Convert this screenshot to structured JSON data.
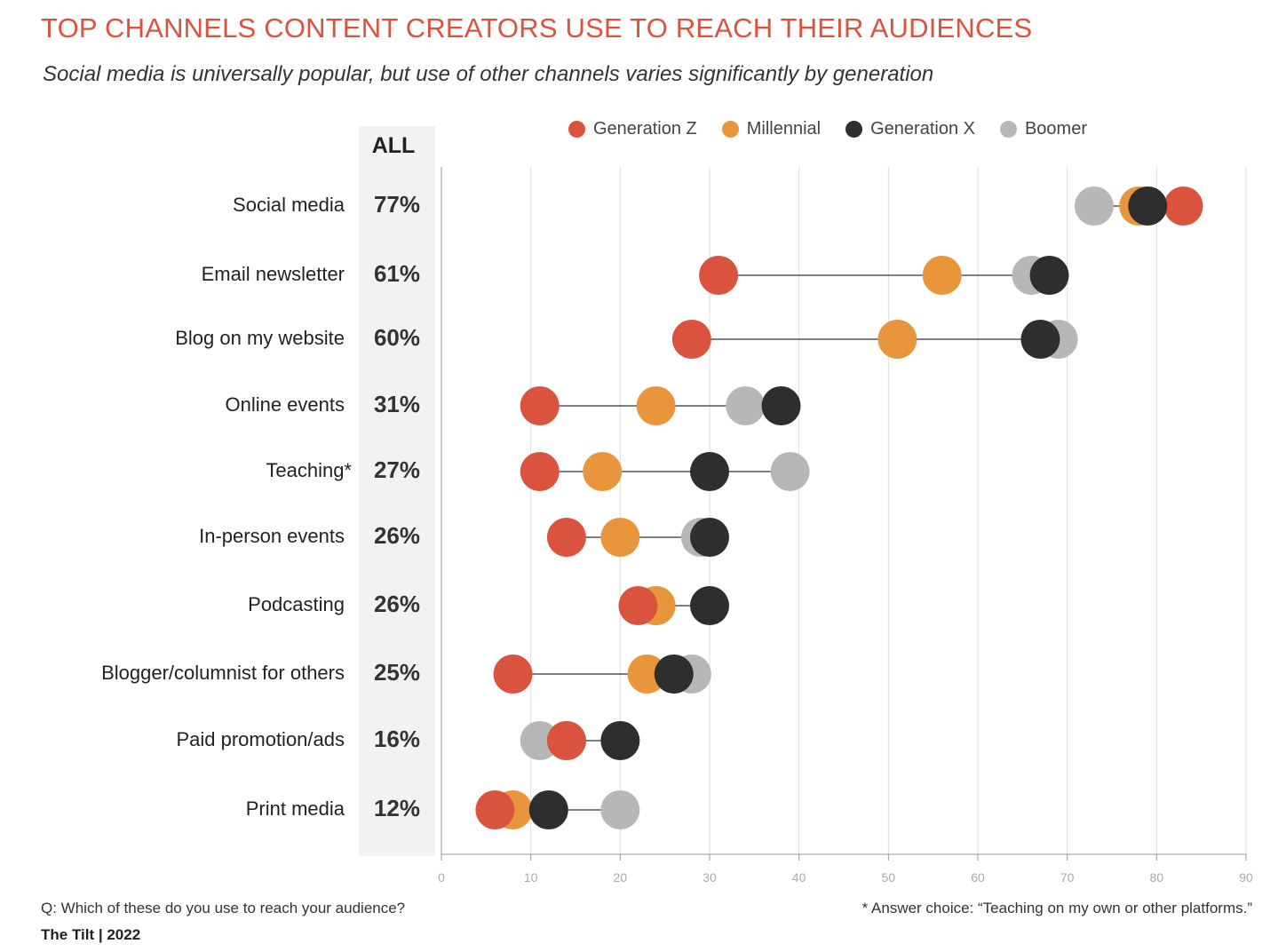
{
  "header": {
    "title": "TOP CHANNELS CONTENT CREATORS USE TO REACH THEIR AUDIENCES",
    "subtitle": "Social media is universally popular, but use of other channels varies significantly by generation"
  },
  "all_column_label": "ALL",
  "colors": {
    "generation_z": "#d9533e",
    "millennial": "#e8953b",
    "generation_x": "#2e2e2e",
    "boomer": "#b7b7b7",
    "connector": "#333333",
    "grid": "#dddddd"
  },
  "legend": [
    {
      "label": "Generation Z",
      "color": "#d9533e"
    },
    {
      "label": "Millennial",
      "color": "#e8953b"
    },
    {
      "label": "Generation X",
      "color": "#2e2e2e"
    },
    {
      "label": "Boomer",
      "color": "#b7b7b7"
    }
  ],
  "chart_data": {
    "type": "scatter",
    "xlim": [
      0,
      90
    ],
    "xticks": [
      0,
      10,
      20,
      30,
      40,
      50,
      60,
      70,
      80,
      90
    ],
    "grid": true,
    "legend_position": "top",
    "series": [
      {
        "name": "Generation Z",
        "values": [
          83,
          31,
          28,
          11,
          11,
          14,
          22,
          8,
          14,
          6
        ]
      },
      {
        "name": "Millennial",
        "values": [
          78,
          56,
          51,
          24,
          18,
          20,
          24,
          23,
          14,
          8
        ]
      },
      {
        "name": "Generation X",
        "values": [
          79,
          68,
          67,
          38,
          30,
          30,
          30,
          26,
          20,
          12
        ]
      },
      {
        "name": "Boomer",
        "values": [
          73,
          66,
          69,
          34,
          39,
          29,
          24,
          28,
          11,
          20
        ]
      }
    ],
    "categories": [
      "Social media",
      "Email newsletter",
      "Blog on my website",
      "Online events",
      "Teaching*",
      "In-person events",
      "Podcasting",
      "Blogger/columnist for others",
      "Paid promotion/ads",
      "Print media"
    ],
    "all_values": [
      "77%",
      "61%",
      "60%",
      "31%",
      "27%",
      "26%",
      "26%",
      "25%",
      "16%",
      "12%"
    ]
  },
  "footer": {
    "question": "Q: Which of these do you use to reach your audience?",
    "note": "* Answer choice: “Teaching on my own or other platforms.”",
    "brand": "The Tilt  |  2022"
  }
}
